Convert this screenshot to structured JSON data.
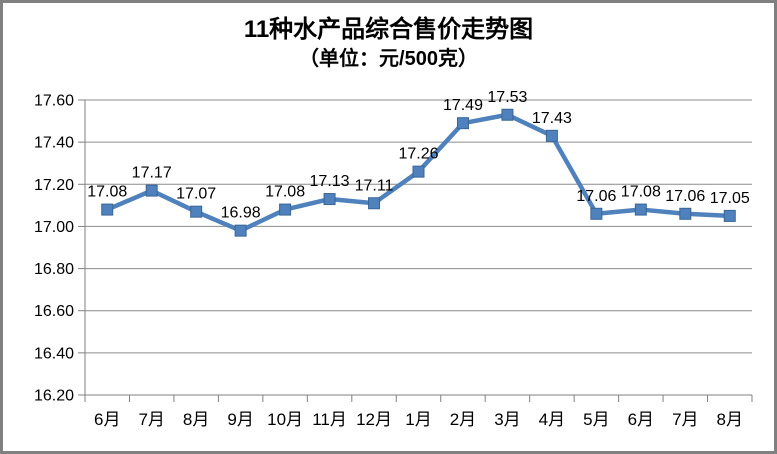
{
  "chart_data": {
    "type": "line",
    "title": "11种水产品综合售价走势图",
    "subtitle": "（单位：元/500克）",
    "categories": [
      "6月",
      "7月",
      "8月",
      "9月",
      "10月",
      "11月",
      "12月",
      "1月",
      "2月",
      "3月",
      "4月",
      "5月",
      "6月",
      "7月",
      "8月"
    ],
    "series": [
      {
        "name": "综合售价",
        "values": [
          17.08,
          17.17,
          17.07,
          16.98,
          17.08,
          17.13,
          17.11,
          17.26,
          17.49,
          17.53,
          17.43,
          17.06,
          17.08,
          17.06,
          17.05
        ],
        "point_labels": [
          "17.08",
          "17.17",
          "17.07",
          "16.98",
          "17.08",
          "17.13",
          "17.11",
          "17.26",
          "17.49",
          "17.53",
          "17.43",
          "17.06",
          "17.08",
          "17.06",
          "17.05"
        ]
      }
    ],
    "xlabel": "",
    "ylabel": "",
    "ylim": [
      16.2,
      17.6
    ],
    "ytick_step": 0.2,
    "ytick_labels": [
      "16.20",
      "16.40",
      "16.60",
      "16.80",
      "17.00",
      "17.20",
      "17.40",
      "17.60"
    ],
    "grid": true,
    "legend_position": "none",
    "marker": "square",
    "colors": {
      "series_fill": "#4F81BD",
      "series_border": "#3A6596",
      "grid_line": "#8C8C8C",
      "axis_line": "#808080",
      "label_text": "#000000",
      "frame_border": "#808080",
      "background": "#FFFFFF"
    }
  }
}
